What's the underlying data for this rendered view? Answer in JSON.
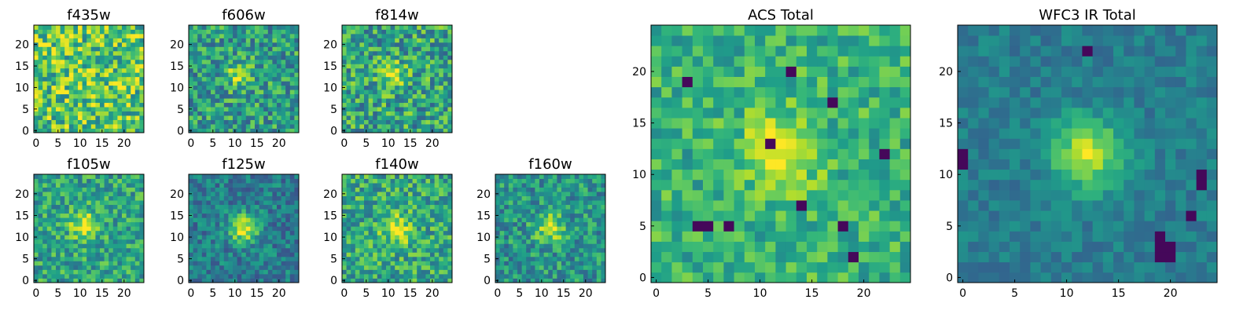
{
  "chart_data": [
    {
      "type": "heatmap",
      "title": "f435w",
      "xlim": [
        0,
        24
      ],
      "ylim": [
        0,
        24
      ],
      "xticks": [
        "0",
        "5",
        "10",
        "15",
        "20"
      ],
      "yticks": [
        "0",
        "5",
        "10",
        "15",
        "20"
      ],
      "grid": false,
      "colormap": "viridis",
      "peak": {
        "x": 12,
        "y": 12,
        "sigma": 3.5,
        "amp": 0.05
      },
      "noise": 0.3,
      "base": 0.72,
      "holes": [],
      "seed": 11
    },
    {
      "type": "heatmap",
      "title": "f606w",
      "xlim": [
        0,
        24
      ],
      "ylim": [
        0,
        24
      ],
      "xticks": [
        "0",
        "5",
        "10",
        "15",
        "20"
      ],
      "yticks": [
        "0",
        "5",
        "10",
        "15",
        "20"
      ],
      "grid": false,
      "colormap": "viridis",
      "peak": {
        "x": 11,
        "y": 13,
        "sigma": 2.0,
        "amp": 0.35
      },
      "noise": 0.26,
      "base": 0.55,
      "holes": [],
      "seed": 23
    },
    {
      "type": "heatmap",
      "title": "f814w",
      "xlim": [
        0,
        24
      ],
      "ylim": [
        0,
        24
      ],
      "xticks": [
        "0",
        "5",
        "10",
        "15",
        "20"
      ],
      "yticks": [
        "0",
        "5",
        "10",
        "15",
        "20"
      ],
      "grid": false,
      "colormap": "viridis",
      "peak": {
        "x": 11,
        "y": 13,
        "sigma": 2.0,
        "amp": 0.35
      },
      "noise": 0.28,
      "base": 0.58,
      "holes": [],
      "seed": 37
    },
    {
      "type": "heatmap",
      "title": "f105w",
      "xlim": [
        0,
        24
      ],
      "ylim": [
        0,
        24
      ],
      "xticks": [
        "0",
        "5",
        "10",
        "15",
        "20"
      ],
      "yticks": [
        "0",
        "5",
        "10",
        "15",
        "20"
      ],
      "grid": false,
      "colormap": "viridis",
      "peak": {
        "x": 11,
        "y": 13,
        "sigma": 2.2,
        "amp": 0.4
      },
      "noise": 0.22,
      "base": 0.58,
      "holes": [],
      "seed": 41
    },
    {
      "type": "heatmap",
      "title": "f125w",
      "xlim": [
        0,
        24
      ],
      "ylim": [
        0,
        24
      ],
      "xticks": [
        "0",
        "5",
        "10",
        "15",
        "20"
      ],
      "yticks": [
        "0",
        "5",
        "10",
        "15",
        "20"
      ],
      "grid": false,
      "colormap": "viridis",
      "peak": {
        "x": 12,
        "y": 12,
        "sigma": 2.3,
        "amp": 0.55
      },
      "noise": 0.18,
      "base": 0.42,
      "holes": [],
      "seed": 53
    },
    {
      "type": "heatmap",
      "title": "f140w",
      "xlim": [
        0,
        24
      ],
      "ylim": [
        0,
        24
      ],
      "xticks": [
        "0",
        "5",
        "10",
        "15",
        "20"
      ],
      "yticks": [
        "0",
        "5",
        "10",
        "15",
        "20"
      ],
      "grid": false,
      "colormap": "viridis",
      "peak": {
        "x": 12,
        "y": 12,
        "sigma": 2.4,
        "amp": 0.35
      },
      "noise": 0.24,
      "base": 0.6,
      "holes": [],
      "seed": 67
    },
    {
      "type": "heatmap",
      "title": "f160w",
      "xlim": [
        0,
        24
      ],
      "ylim": [
        0,
        24
      ],
      "xticks": [
        "0",
        "5",
        "10",
        "15",
        "20"
      ],
      "yticks": [
        "0",
        "5",
        "10",
        "15",
        "20"
      ],
      "grid": false,
      "colormap": "viridis",
      "peak": {
        "x": 12,
        "y": 12,
        "sigma": 2.3,
        "amp": 0.4
      },
      "noise": 0.22,
      "base": 0.52,
      "holes": [],
      "seed": 79
    },
    {
      "type": "heatmap",
      "title": "ACS Total",
      "xlim": [
        0,
        24
      ],
      "ylim": [
        0,
        24
      ],
      "xticks": [
        "0",
        "5",
        "10",
        "15",
        "20"
      ],
      "yticks": [
        "0",
        "5",
        "10",
        "15",
        "20"
      ],
      "grid": false,
      "colormap": "viridis",
      "peak": {
        "x": 12,
        "y": 12,
        "sigma": 2.6,
        "amp": 0.35
      },
      "noise": 0.18,
      "base": 0.64,
      "holes": [
        [
          3,
          19
        ],
        [
          5,
          5
        ],
        [
          4,
          5
        ],
        [
          7,
          5
        ],
        [
          14,
          7
        ],
        [
          18,
          5
        ],
        [
          17,
          17
        ],
        [
          19,
          2
        ],
        [
          22,
          12
        ],
        [
          13,
          20
        ],
        [
          11,
          13
        ]
      ],
      "seed": 89
    },
    {
      "type": "heatmap",
      "title": "WFC3 IR Total",
      "xlim": [
        0,
        24
      ],
      "ylim": [
        0,
        24
      ],
      "xticks": [
        "0",
        "5",
        "10",
        "15",
        "20"
      ],
      "yticks": [
        "0",
        "5",
        "10",
        "15",
        "20"
      ],
      "grid": false,
      "colormap": "viridis",
      "peak": {
        "x": 12,
        "y": 12,
        "sigma": 2.4,
        "amp": 0.5
      },
      "noise": 0.1,
      "base": 0.42,
      "holes": [
        [
          19,
          4
        ],
        [
          19,
          3
        ],
        [
          20,
          3
        ],
        [
          19,
          2
        ],
        [
          20,
          2
        ],
        [
          0,
          12
        ],
        [
          0,
          11
        ],
        [
          23,
          9
        ],
        [
          23,
          10
        ],
        [
          22,
          6
        ],
        [
          12,
          22
        ]
      ],
      "seed": 97
    }
  ]
}
